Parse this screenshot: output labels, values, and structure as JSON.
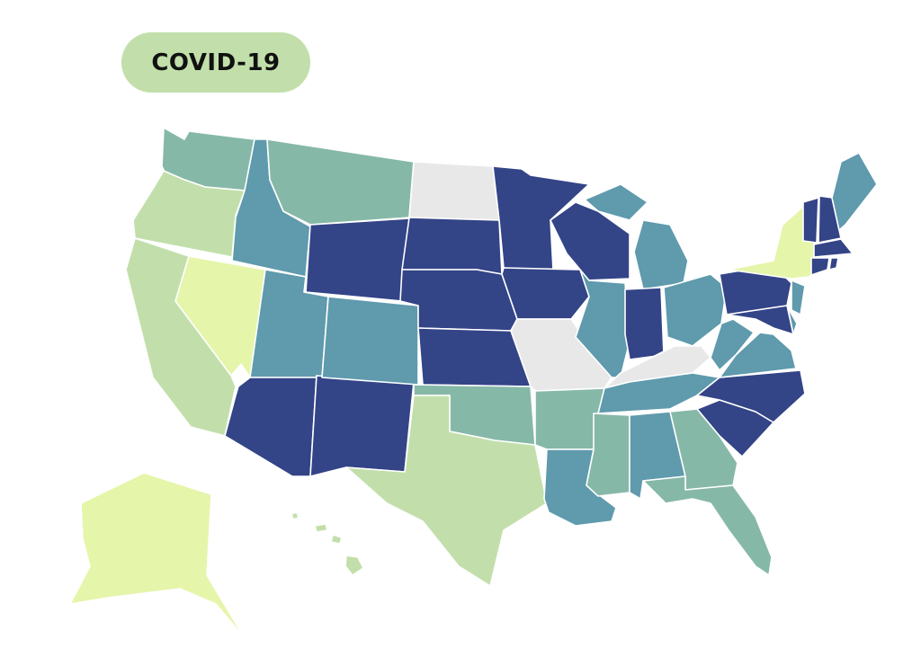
{
  "badge": {
    "label": "COVID-19"
  }
}
